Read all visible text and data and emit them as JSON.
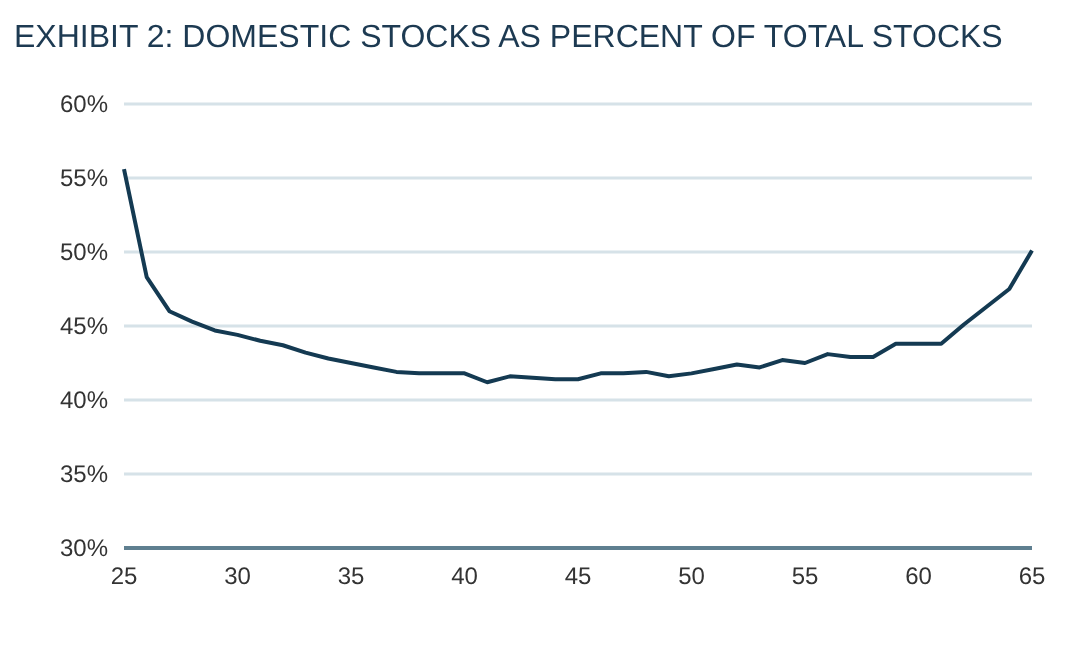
{
  "chart_data": {
    "type": "line",
    "title": "EXHIBIT 2: DOMESTIC STOCKS AS PERCENT OF TOTAL STOCKS",
    "x": [
      25,
      26,
      27,
      28,
      29,
      30,
      31,
      32,
      33,
      34,
      35,
      36,
      37,
      38,
      39,
      40,
      41,
      42,
      43,
      44,
      45,
      46,
      47,
      48,
      49,
      50,
      51,
      52,
      53,
      54,
      55,
      56,
      57,
      58,
      59,
      60,
      61,
      62,
      63,
      64,
      65
    ],
    "series": [
      {
        "color": "#143a52",
        "values": [
          55.6,
          48.3,
          46.0,
          45.3,
          44.7,
          44.4,
          44.0,
          43.7,
          43.2,
          42.8,
          42.5,
          42.2,
          41.9,
          41.8,
          41.8,
          41.8,
          41.2,
          41.6,
          41.5,
          41.4,
          41.4,
          41.8,
          41.8,
          41.9,
          41.6,
          41.8,
          42.1,
          42.4,
          42.2,
          42.7,
          42.5,
          43.1,
          42.9,
          42.9,
          43.8,
          43.8,
          43.8,
          45.1,
          46.3,
          47.5,
          50.1
        ]
      }
    ],
    "xlim": [
      25,
      65
    ],
    "xticks": [
      25,
      30,
      35,
      40,
      45,
      50,
      55,
      60,
      65
    ],
    "ylim": [
      30,
      60
    ],
    "yticks": [
      {
        "value": 30,
        "label": "30%"
      },
      {
        "value": 35,
        "label": "35%"
      },
      {
        "value": 40,
        "label": "40%"
      },
      {
        "value": 45,
        "label": "45%"
      },
      {
        "value": 50,
        "label": "50%"
      },
      {
        "value": 55,
        "label": "55%"
      },
      {
        "value": 60,
        "label": "60%"
      }
    ],
    "grid": "y",
    "marker": "none",
    "line_style": "solid"
  }
}
